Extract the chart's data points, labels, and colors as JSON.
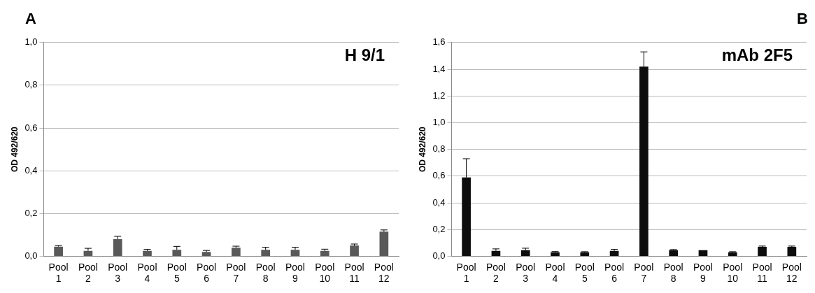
{
  "chart_data": [
    {
      "type": "bar",
      "title": "A",
      "ylabel": "OD 492/620",
      "annotations": [
        "H 9/1"
      ],
      "categories": [
        "Pool 1",
        "Pool 2",
        "Pool 3",
        "Pool 4",
        "Pool 5",
        "Pool 6",
        "Pool 7",
        "Pool 8",
        "Pool 9",
        "Pool 10",
        "Pool 11",
        "Pool 12"
      ],
      "values": [
        0.045,
        0.025,
        0.08,
        0.025,
        0.03,
        0.02,
        0.04,
        0.03,
        0.03,
        0.025,
        0.05,
        0.115
      ],
      "errors": [
        [
          0.045,
          0.05
        ],
        [
          0.025,
          0.037
        ],
        [
          0.08,
          0.093
        ],
        [
          0.025,
          0.032
        ],
        [
          0.03,
          0.046
        ],
        [
          0.02,
          0.027
        ],
        [
          0.04,
          0.047
        ],
        [
          0.03,
          0.042
        ],
        [
          0.03,
          0.042
        ],
        [
          0.025,
          0.033
        ],
        [
          0.05,
          0.057
        ],
        [
          0.115,
          0.123
        ]
      ],
      "color": "#595959",
      "ylim": [
        0,
        1
      ],
      "yticks": [
        {
          "value": 0,
          "label": "0,0"
        },
        {
          "value": 0.2,
          "label": "0,2"
        },
        {
          "value": 0.4,
          "label": "0,4"
        },
        {
          "value": 0.6,
          "label": "0,6"
        },
        {
          "value": 0.8,
          "label": "0,8"
        },
        {
          "value": 1,
          "label": "1,0"
        }
      ],
      "grid": "y",
      "legend": false
    },
    {
      "type": "bar",
      "title": "B",
      "ylabel": "OD 492/620",
      "annotations": [
        "mAb 2F5"
      ],
      "categories": [
        "Pool 1",
        "Pool 2",
        "Pool 3",
        "Pool 4",
        "Pool 5",
        "Pool 6",
        "Pool 7",
        "Pool 8",
        "Pool 9",
        "Pool 10",
        "Pool 11",
        "Pool 12"
      ],
      "values": [
        0.59,
        0.04,
        0.045,
        0.03,
        0.03,
        0.04,
        1.42,
        0.045,
        0.045,
        0.03,
        0.07,
        0.07
      ],
      "errors": [
        [
          0.59,
          0.73
        ],
        [
          0.04,
          0.055
        ],
        [
          0.045,
          0.06
        ],
        [
          0.03,
          0.035
        ],
        [
          0.03,
          0.034
        ],
        [
          0.04,
          0.052
        ],
        [
          1.42,
          1.53
        ],
        [
          0.045,
          0.05
        ],
        null,
        [
          0.03,
          0.034
        ],
        [
          0.07,
          0.076
        ],
        [
          0.07,
          0.076
        ]
      ],
      "color": "#0d0d0d",
      "ylim": [
        0,
        1.6
      ],
      "yticks": [
        {
          "value": 0,
          "label": "0,0"
        },
        {
          "value": 0.2,
          "label": "0,2"
        },
        {
          "value": 0.4,
          "label": "0,4"
        },
        {
          "value": 0.6,
          "label": "0,6"
        },
        {
          "value": 0.8,
          "label": "0,8"
        },
        {
          "value": 1,
          "label": "1,0"
        },
        {
          "value": 1.2,
          "label": "1,2"
        },
        {
          "value": 1.4,
          "label": "1,4"
        },
        {
          "value": 1.6,
          "label": "1,6"
        }
      ],
      "grid": "y",
      "legend": false
    }
  ]
}
